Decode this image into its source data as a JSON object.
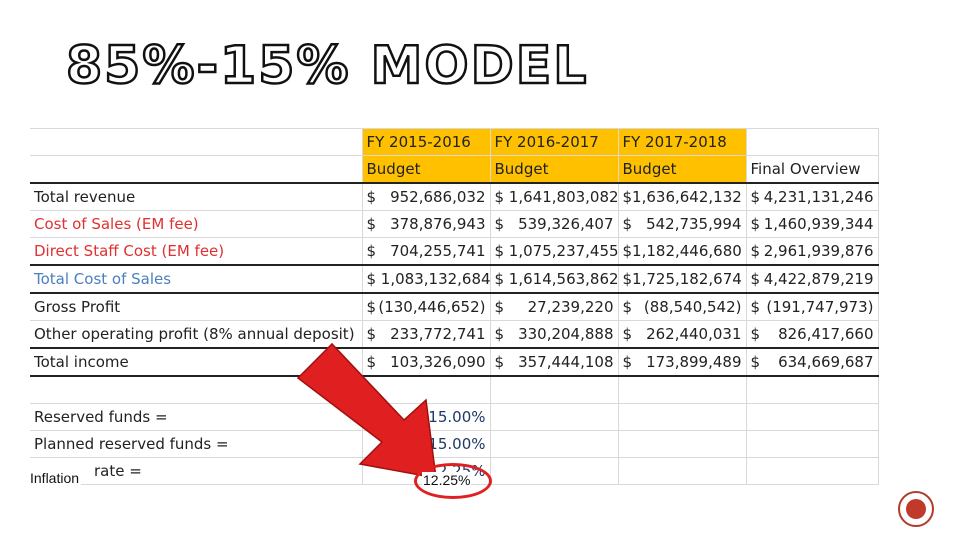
{
  "title": "85%-15% MODEL",
  "header": {
    "fy1": [
      "FY 2015-2016",
      "Budget"
    ],
    "fy2": [
      "FY 2016-2017",
      "Budget"
    ],
    "fy3": [
      "FY 2017-2018",
      "Budget"
    ],
    "overview": "Final Overview"
  },
  "rows": [
    {
      "label": "Total revenue",
      "v1": [
        "$",
        "952,686,032"
      ],
      "v2": [
        "$ 1,641,803,082"
      ],
      "v3": [
        "$",
        "1,636,642,132"
      ],
      "v4": [
        "$",
        "4,231,131,246"
      ]
    },
    {
      "label": "Cost of Sales (EM fee)",
      "v1": [
        "$",
        "378,876,943"
      ],
      "v2": [
        "$",
        "539,326,407"
      ],
      "v3": [
        "$",
        "542,735,994"
      ],
      "v4": [
        "$",
        "1,460,939,344"
      ]
    },
    {
      "label": "Direct Staff Cost (EM fee)",
      "v1": [
        "$",
        "704,255,741"
      ],
      "v2": [
        "$ 1,075,237,455"
      ],
      "v3": [
        "$",
        "1,182,446,680"
      ],
      "v4": [
        "$",
        "2,961,939,876"
      ]
    },
    {
      "label": "Total Cost of Sales",
      "v1": [
        "$ 1,083,132,684"
      ],
      "v2": [
        "$ 1,614,563,862"
      ],
      "v3": [
        "$",
        "1,725,182,674"
      ],
      "v4": [
        "$",
        "4,422,879,219"
      ]
    },
    {
      "label": "Gross Profit",
      "v1": [
        "$",
        "(130,446,652)"
      ],
      "v2": [
        "$",
        "27,239,220"
      ],
      "v3": [
        "$",
        "(88,540,542)"
      ],
      "v4": [
        "$",
        "(191,747,973)"
      ]
    },
    {
      "label": "Other operating profit (8% annual deposit)",
      "v1": [
        "$",
        "233,772,741"
      ],
      "v2": [
        "$",
        "330,204,888"
      ],
      "v3": [
        "$",
        "262,440,031"
      ],
      "v4": [
        "$",
        "826,417,660"
      ]
    },
    {
      "label": "Total income",
      "v1": [
        "$",
        "103,326,090"
      ],
      "v2": [
        "$",
        "357,444,108"
      ],
      "v3": [
        "$",
        "173,899,489"
      ],
      "v4": [
        "$",
        "634,669,687"
      ]
    }
  ],
  "params": [
    {
      "label": "Reserved funds =",
      "value": "15.00%"
    },
    {
      "label": "Planned reserved funds =",
      "value": "15.00%"
    },
    {
      "label": "rate =",
      "value": "12.25%"
    }
  ],
  "annotation": {
    "inflation": "Inflation",
    "circled_value": "12.25%"
  },
  "colors": {
    "header_fill": "#ffc000",
    "cost_text": "#e03030",
    "total_cost_text": "#4a7fc0",
    "arrow": "#e02020"
  }
}
